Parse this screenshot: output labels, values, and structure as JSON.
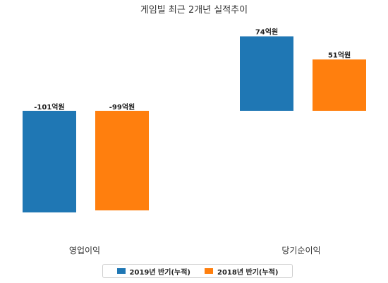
{
  "chart_data": {
    "type": "bar",
    "title": "게임빌 최근 2개년 실적추이",
    "categories": [
      "영업이익",
      "당기순이익"
    ],
    "series": [
      {
        "name": "2019년 반기(누적)",
        "values": [
          -101,
          74
        ],
        "labels": [
          "-101억원",
          "74억원"
        ],
        "color": "#1f77b4"
      },
      {
        "name": "2018년 반기(누적)",
        "values": [
          -99,
          51
        ],
        "labels": [
          "-99억원",
          "51억원"
        ],
        "color": "#ff7f0e"
      }
    ],
    "unit": "억원",
    "ylim": [
      -101,
      74
    ],
    "grid": false,
    "legend_position": "bottom"
  }
}
